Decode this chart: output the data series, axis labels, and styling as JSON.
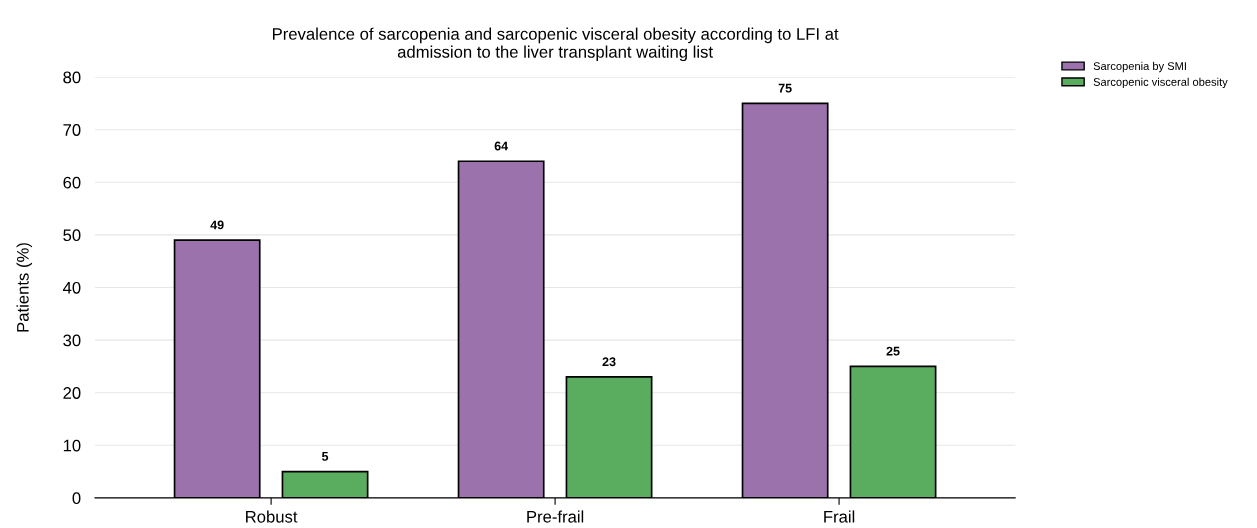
{
  "chart_data": {
    "type": "bar",
    "title": "Prevalence of sarcopenia and sarcopenic visceral obesity according to LFI at\nadmission to the liver transplant waiting list",
    "ylabel": "Patients (%)",
    "categories": [
      "Robust",
      "Pre-frail",
      "Frail"
    ],
    "series": [
      {
        "name": "Sarcopenia by SMI",
        "color": "#9b72ab",
        "values": [
          49,
          64,
          75
        ]
      },
      {
        "name": "Sarcopenic visceral obesity",
        "color": "#5aad5f",
        "values": [
          5,
          23,
          25
        ]
      }
    ],
    "ylim": [
      0,
      80
    ],
    "yticks": [
      0,
      10,
      20,
      30,
      40,
      50,
      60,
      70,
      80
    ],
    "grid": "y",
    "legend": "top right",
    "data_labels": true
  }
}
